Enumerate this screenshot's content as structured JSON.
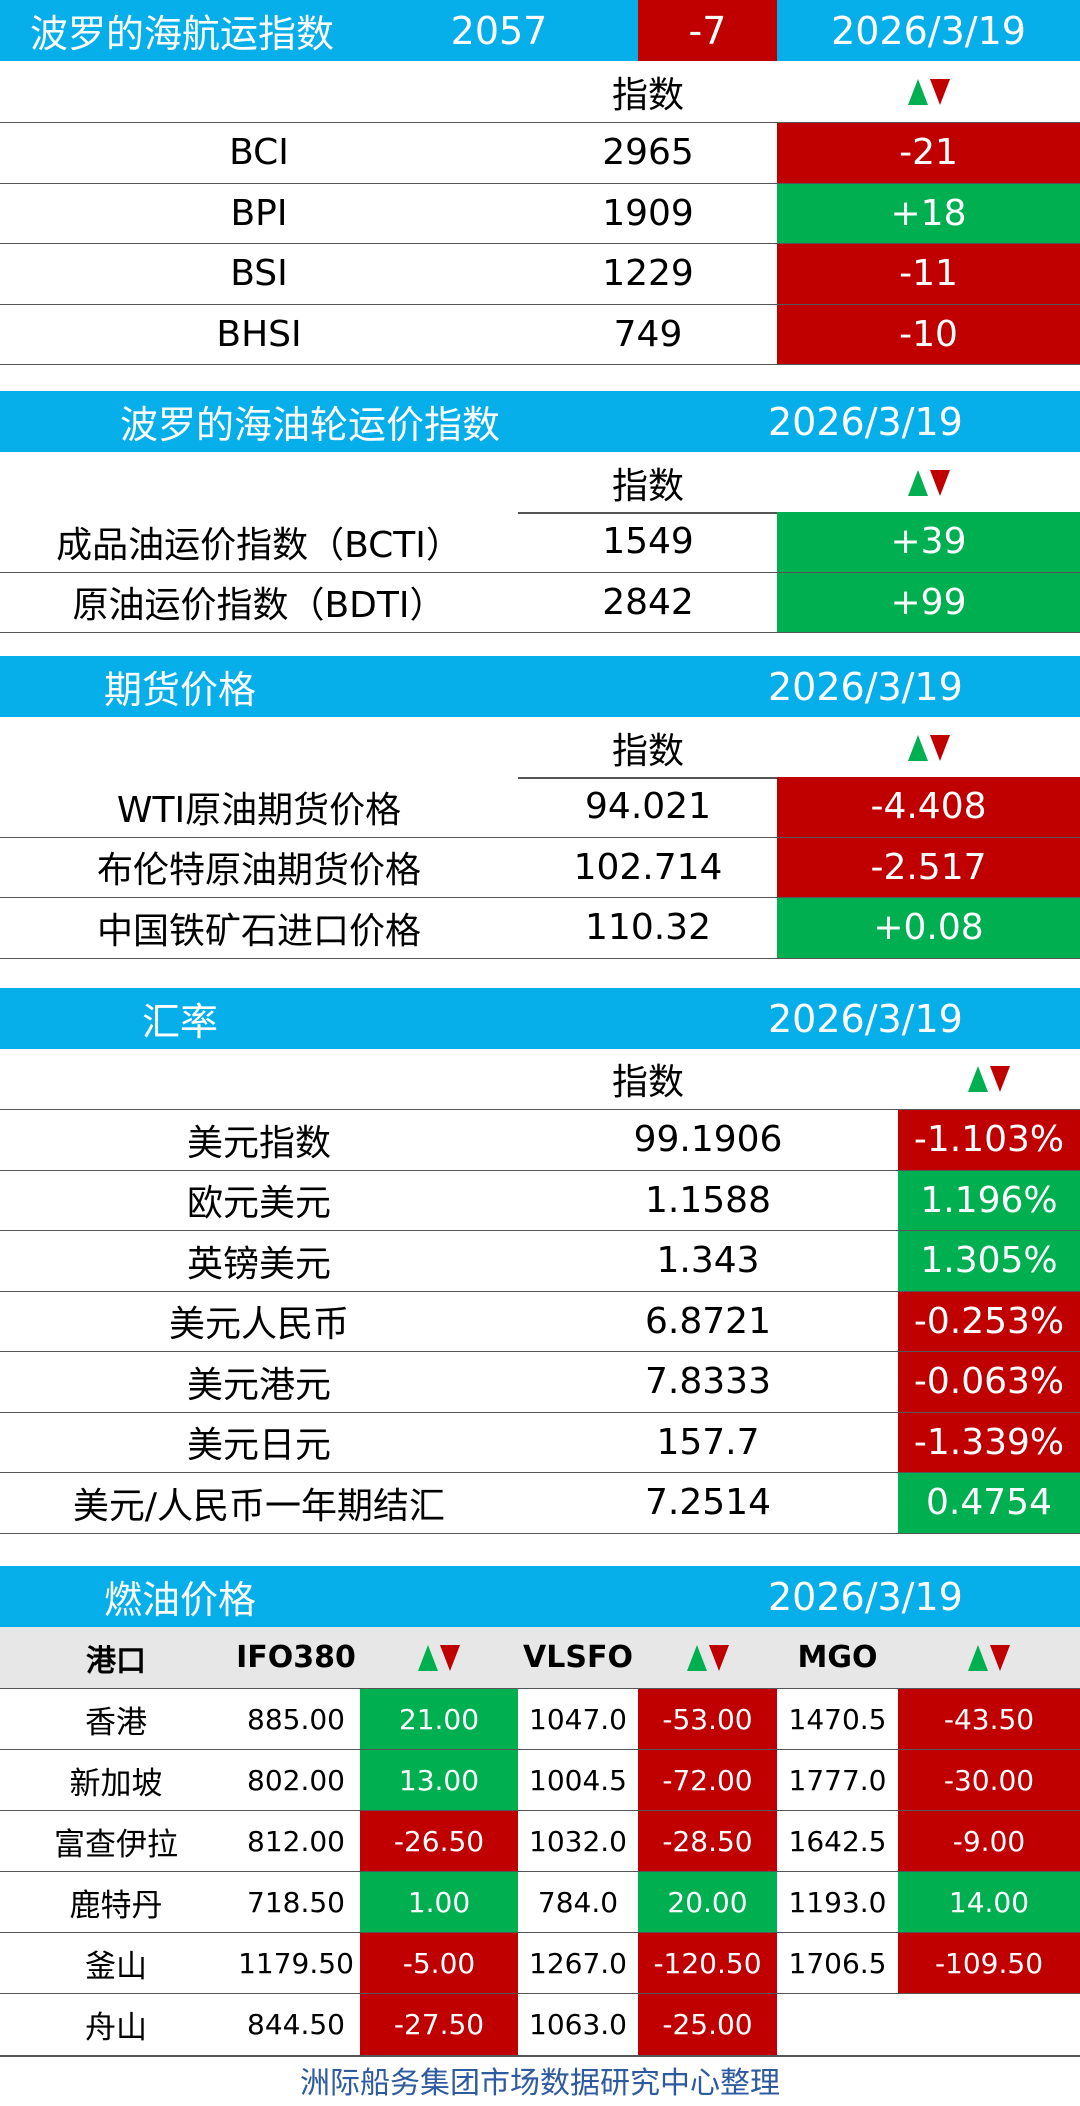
{
  "bdi": {
    "title": "波罗的海航运指数",
    "value": "2057",
    "change": "-7",
    "date": "2026/3/19",
    "col_index": "指数",
    "rows": [
      {
        "name": "BCI",
        "value": "2965",
        "change": "-21",
        "dir": "down"
      },
      {
        "name": "BPI",
        "value": "1909",
        "change": "+18",
        "dir": "up"
      },
      {
        "name": "BSI",
        "value": "1229",
        "change": "-11",
        "dir": "down"
      },
      {
        "name": "BHSI",
        "value": "749",
        "change": "-10",
        "dir": "down"
      }
    ]
  },
  "tanker": {
    "title": "波罗的海油轮运价指数",
    "date": "2026/3/19",
    "col_index": "指数",
    "rows": [
      {
        "name": "成品油运价指数（BCTI）",
        "value": "1549",
        "change": "+39",
        "dir": "up"
      },
      {
        "name": "原油运价指数（BDTI）",
        "value": "2842",
        "change": "+99",
        "dir": "up"
      }
    ]
  },
  "futures": {
    "title": "期货价格",
    "date": "2026/3/19",
    "col_index": "指数",
    "rows": [
      {
        "name": "WTI原油期货价格",
        "value": "94.021",
        "change": "-4.408",
        "dir": "down"
      },
      {
        "name": "布伦特原油期货价格",
        "value": "102.714",
        "change": "-2.517",
        "dir": "down"
      },
      {
        "name": "中国铁矿石进口价格",
        "value": "110.32",
        "change": "+0.08",
        "dir": "up"
      }
    ]
  },
  "fx": {
    "title": "汇率",
    "date": "2026/3/19",
    "col_index": "指数",
    "rows": [
      {
        "name": "美元指数",
        "value": "99.1906",
        "change": "-1.103%",
        "dir": "down"
      },
      {
        "name": "欧元美元",
        "value": "1.1588",
        "change": "1.196%",
        "dir": "up"
      },
      {
        "name": "英镑美元",
        "value": "1.343",
        "change": "1.305%",
        "dir": "up"
      },
      {
        "name": "美元人民币",
        "value": "6.8721",
        "change": "-0.253%",
        "dir": "down"
      },
      {
        "name": "美元港元",
        "value": "7.8333",
        "change": "-0.063%",
        "dir": "down"
      },
      {
        "name": "美元日元",
        "value": "157.7",
        "change": "-1.339%",
        "dir": "down"
      },
      {
        "name": "美元/人民币一年期结汇",
        "value": "7.2514",
        "change": "0.4754",
        "dir": "up"
      }
    ]
  },
  "fuel": {
    "title": "燃油价格",
    "date": "2026/3/19",
    "headers": {
      "port": "港口",
      "ifo": "IFO380",
      "vlsfo": "VLSFO",
      "mgo": "MGO"
    },
    "rows": [
      {
        "port": "香港",
        "ifo": "885.00",
        "ifo_chg": "21.00",
        "ifo_dir": "up",
        "vlsfo": "1047.0",
        "vlsfo_chg": "-53.00",
        "vlsfo_dir": "down",
        "mgo": "1470.5",
        "mgo_chg": "-43.50",
        "mgo_dir": "down"
      },
      {
        "port": "新加坡",
        "ifo": "802.00",
        "ifo_chg": "13.00",
        "ifo_dir": "up",
        "vlsfo": "1004.5",
        "vlsfo_chg": "-72.00",
        "vlsfo_dir": "down",
        "mgo": "1777.0",
        "mgo_chg": "-30.00",
        "mgo_dir": "down"
      },
      {
        "port": "富查伊拉",
        "ifo": "812.00",
        "ifo_chg": "-26.50",
        "ifo_dir": "down",
        "vlsfo": "1032.0",
        "vlsfo_chg": "-28.50",
        "vlsfo_dir": "down",
        "mgo": "1642.5",
        "mgo_chg": "-9.00",
        "mgo_dir": "down"
      },
      {
        "port": "鹿特丹",
        "ifo": "718.50",
        "ifo_chg": "1.00",
        "ifo_dir": "up",
        "vlsfo": "784.0",
        "vlsfo_chg": "20.00",
        "vlsfo_dir": "up",
        "mgo": "1193.0",
        "mgo_chg": "14.00",
        "mgo_dir": "up"
      },
      {
        "port": "釜山",
        "ifo": "1179.50",
        "ifo_chg": "-5.00",
        "ifo_dir": "down",
        "vlsfo": "1267.0",
        "vlsfo_chg": "-120.50",
        "vlsfo_dir": "down",
        "mgo": "1706.5",
        "mgo_chg": "-109.50",
        "mgo_dir": "down"
      },
      {
        "port": "舟山",
        "ifo": "844.50",
        "ifo_chg": "-27.50",
        "ifo_dir": "down",
        "vlsfo": "1063.0",
        "vlsfo_chg": "-25.00",
        "vlsfo_dir": "down",
        "mgo": "",
        "mgo_chg": "",
        "mgo_dir": ""
      }
    ]
  },
  "footer": "洲际船务集团市场数据研究中心整理",
  "icons": {
    "up": "up-triangle-icon",
    "down": "down-triangle-icon"
  },
  "colors": {
    "header": "#06aeea",
    "up": "#00b050",
    "down": "#c00000",
    "footer": "#2e5aa0"
  }
}
